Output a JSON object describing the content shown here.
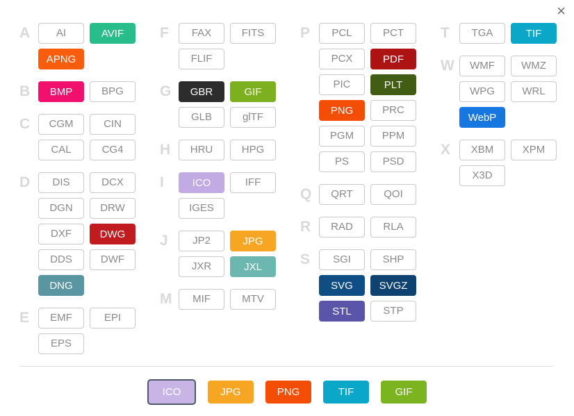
{
  "close": {
    "glyph": "×"
  },
  "columns": [
    {
      "groups": [
        {
          "letter": "A",
          "items": [
            {
              "label": "AI"
            },
            {
              "label": "AVIF",
              "bg": "#2abd8c"
            },
            {
              "label": "APNG",
              "bg": "#f75d0d"
            }
          ]
        },
        {
          "letter": "B",
          "items": [
            {
              "label": "BMP",
              "bg": "#f1106e"
            },
            {
              "label": "BPG"
            }
          ]
        },
        {
          "letter": "C",
          "items": [
            {
              "label": "CGM"
            },
            {
              "label": "CIN"
            },
            {
              "label": "CAL"
            },
            {
              "label": "CG4"
            }
          ]
        },
        {
          "letter": "D",
          "items": [
            {
              "label": "DIS"
            },
            {
              "label": "DCX"
            },
            {
              "label": "DGN"
            },
            {
              "label": "DRW"
            },
            {
              "label": "DXF"
            },
            {
              "label": "DWG",
              "bg": "#c11b1f"
            },
            {
              "label": "DDS"
            },
            {
              "label": "DWF"
            },
            {
              "label": "DNG",
              "bg": "#5a96a2"
            }
          ]
        },
        {
          "letter": "E",
          "items": [
            {
              "label": "EMF"
            },
            {
              "label": "EPI"
            },
            {
              "label": "EPS"
            }
          ]
        }
      ]
    },
    {
      "groups": [
        {
          "letter": "F",
          "items": [
            {
              "label": "FAX"
            },
            {
              "label": "FITS"
            },
            {
              "label": "FLIF"
            }
          ]
        },
        {
          "letter": "G",
          "items": [
            {
              "label": "GBR",
              "bg": "#2d2d2d"
            },
            {
              "label": "GIF",
              "bg": "#7cb01f"
            },
            {
              "label": "GLB"
            },
            {
              "label": "glTF"
            }
          ]
        },
        {
          "letter": "H",
          "items": [
            {
              "label": "HRU"
            },
            {
              "label": "HPG"
            }
          ]
        },
        {
          "letter": "I",
          "items": [
            {
              "label": "ICO",
              "bg": "#c1abe2"
            },
            {
              "label": "IFF"
            },
            {
              "label": "IGES"
            }
          ]
        },
        {
          "letter": "J",
          "items": [
            {
              "label": "JP2"
            },
            {
              "label": "JPG",
              "bg": "#f6a623"
            },
            {
              "label": "JXR"
            },
            {
              "label": "JXL",
              "bg": "#6cb8b1"
            }
          ]
        },
        {
          "letter": "M",
          "items": [
            {
              "label": "MIF"
            },
            {
              "label": "MTV"
            }
          ]
        }
      ]
    },
    {
      "groups": [
        {
          "letter": "P",
          "items": [
            {
              "label": "PCL"
            },
            {
              "label": "PCT"
            },
            {
              "label": "PCX"
            },
            {
              "label": "PDF",
              "bg": "#ae1313"
            },
            {
              "label": "PIC"
            },
            {
              "label": "PLT",
              "bg": "#415d13"
            },
            {
              "label": "PNG",
              "bg": "#f44d06"
            },
            {
              "label": "PRC"
            },
            {
              "label": "PGM"
            },
            {
              "label": "PPM"
            },
            {
              "label": "PS"
            },
            {
              "label": "PSD"
            }
          ]
        },
        {
          "letter": "Q",
          "items": [
            {
              "label": "QRT"
            },
            {
              "label": "QOI"
            }
          ]
        },
        {
          "letter": "R",
          "items": [
            {
              "label": "RAD"
            },
            {
              "label": "RLA"
            }
          ]
        },
        {
          "letter": "S",
          "items": [
            {
              "label": "SGI"
            },
            {
              "label": "SHP"
            },
            {
              "label": "SVG",
              "bg": "#0f4e84"
            },
            {
              "label": "SVGZ",
              "bg": "#0e4371"
            },
            {
              "label": "STL",
              "bg": "#5b55aa"
            },
            {
              "label": "STP"
            }
          ]
        }
      ]
    },
    {
      "groups": [
        {
          "letter": "T",
          "items": [
            {
              "label": "TGA"
            },
            {
              "label": "TIF",
              "bg": "#0ba7c9"
            }
          ]
        },
        {
          "letter": "W",
          "items": [
            {
              "label": "WMF"
            },
            {
              "label": "WMZ"
            },
            {
              "label": "WPG"
            },
            {
              "label": "WRL"
            },
            {
              "label": "WebP",
              "bg": "#1777e0"
            }
          ]
        },
        {
          "letter": "X",
          "items": [
            {
              "label": "XBM"
            },
            {
              "label": "XPM"
            },
            {
              "label": "X3D"
            }
          ]
        }
      ]
    }
  ],
  "footer": {
    "items": [
      {
        "label": "ICO",
        "bg": "#c9b4e6",
        "selected": true,
        "border": "#4d5966"
      },
      {
        "label": "JPG",
        "bg": "#f6a623"
      },
      {
        "label": "PNG",
        "bg": "#f44d06"
      },
      {
        "label": "TIF",
        "bg": "#0ba7c9"
      },
      {
        "label": "GIF",
        "bg": "#7cb41f"
      }
    ]
  }
}
